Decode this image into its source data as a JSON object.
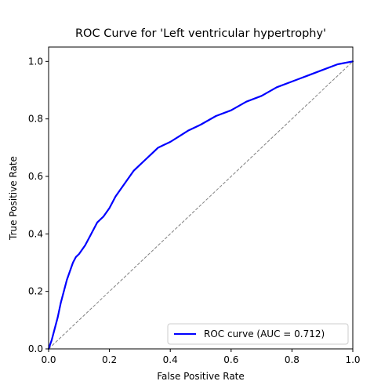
{
  "chart_data": {
    "type": "line",
    "title": "ROC Curve for 'Left ventricular hypertrophy'",
    "xlabel": "False Positive Rate",
    "ylabel": "True Positive Rate",
    "xlim": [
      0.0,
      1.0
    ],
    "ylim": [
      0.0,
      1.05
    ],
    "xticks": [
      "0.0",
      "0.2",
      "0.4",
      "0.6",
      "0.8",
      "1.0"
    ],
    "yticks": [
      "0.0",
      "0.2",
      "0.4",
      "0.6",
      "0.8",
      "1.0"
    ],
    "grid": false,
    "legend_position": "lower-right",
    "series": [
      {
        "name": "ROC curve (AUC = 0.712)",
        "color": "#0000ff",
        "style": "solid",
        "x": [
          0.0,
          0.01,
          0.02,
          0.03,
          0.04,
          0.05,
          0.06,
          0.07,
          0.08,
          0.09,
          0.1,
          0.12,
          0.14,
          0.16,
          0.18,
          0.2,
          0.22,
          0.24,
          0.26,
          0.28,
          0.3,
          0.32,
          0.34,
          0.36,
          0.38,
          0.4,
          0.43,
          0.46,
          0.5,
          0.55,
          0.6,
          0.65,
          0.7,
          0.75,
          0.8,
          0.85,
          0.9,
          0.95,
          1.0
        ],
        "y": [
          0.0,
          0.03,
          0.07,
          0.11,
          0.16,
          0.2,
          0.24,
          0.27,
          0.3,
          0.32,
          0.33,
          0.36,
          0.4,
          0.44,
          0.46,
          0.49,
          0.53,
          0.56,
          0.59,
          0.62,
          0.64,
          0.66,
          0.68,
          0.7,
          0.71,
          0.72,
          0.74,
          0.76,
          0.78,
          0.81,
          0.83,
          0.86,
          0.88,
          0.91,
          0.93,
          0.95,
          0.97,
          0.99,
          1.0
        ]
      }
    ],
    "reference_line": {
      "x": [
        0.0,
        1.0
      ],
      "y": [
        0.0,
        1.0
      ],
      "color": "#808080",
      "style": "dashed"
    }
  }
}
